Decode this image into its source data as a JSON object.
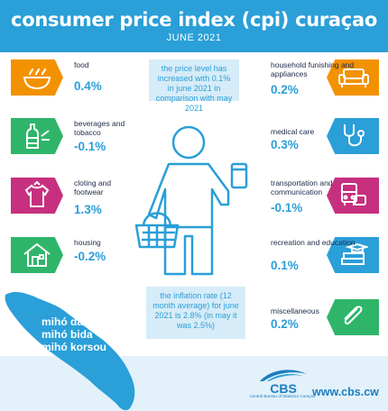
{
  "header": {
    "title": "consumer price index (cpi) curaçao",
    "subtitle": "JUNE 2021"
  },
  "colors": {
    "blue": "#2a9fd8",
    "orange": "#f39200",
    "green": "#2fb56a",
    "magenta": "#c6307f",
    "navy": "#1e2a4a",
    "lightblue": "#d6ecf8"
  },
  "left_items": [
    {
      "label": "food",
      "value": "0.4%",
      "color": "#f39200",
      "icon": "food-bowl-icon"
    },
    {
      "label": "beverages and tobacco",
      "value": "-0.1%",
      "color": "#2fb56a",
      "icon": "bottle-icon"
    },
    {
      "label": "cloting and footwear",
      "value": "1.3%",
      "color": "#c6307f",
      "icon": "shirt-icon"
    },
    {
      "label": "housing",
      "value": "-0.2%",
      "color": "#2fb56a",
      "icon": "house-icon"
    }
  ],
  "right_items": [
    {
      "label": "household funishing and appliances",
      "value": "0.2%",
      "color": "#f39200",
      "icon": "sofa-icon"
    },
    {
      "label": "medical care",
      "value": "0.3%",
      "color": "#2a9fd8",
      "icon": "stethoscope-icon"
    },
    {
      "label": "transportation and communication",
      "value": "-0.1%",
      "color": "#c6307f",
      "icon": "bus-icon"
    },
    {
      "label": "recreation and education",
      "value": "0.1%",
      "color": "#2a9fd8",
      "icon": "books-icon"
    },
    {
      "label": "miscellaneous",
      "value": "0.2%",
      "color": "#2fb56a",
      "icon": "paperclip-icon"
    }
  ],
  "info_top": "the price level has increased with 0.1% in june 2021 in comparison with may 2021",
  "info_bottom": "the inflation rate (12 month average) for june 2021 is 2.8% (in may it was 2.5%)",
  "slogan": [
    "mihó data",
    "mihó bida",
    "mihó korsou"
  ],
  "footer": {
    "logo_text": "CBS",
    "logo_sub": "Central Bureau of Statistics Curaçao",
    "url": "www.cbs.cw"
  }
}
